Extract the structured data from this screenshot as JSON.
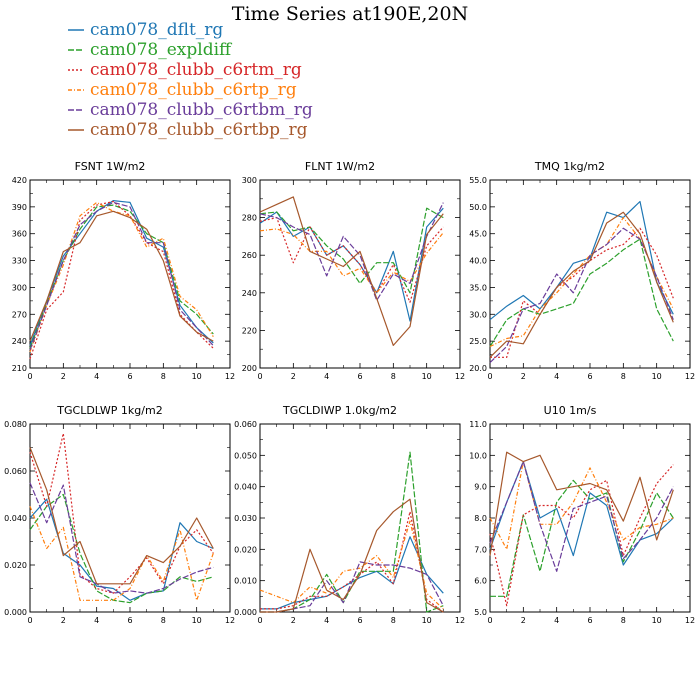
{
  "title": "Time Series at190E,20N",
  "colors": [
    "#1f77b4",
    "#2ca02c",
    "#d62728",
    "#ff7f0e",
    "#6a3d9a",
    "#a6582c"
  ],
  "dashes": [
    "none",
    "6,2",
    "2,2",
    "4,2,1,2",
    "6,2",
    "none"
  ],
  "legend": [
    "cam078_dflt_rg",
    "cam078_expldiff",
    "cam078_clubb_c6rtm_rg",
    "cam078_clubb_c6rtp_rg",
    "cam078_clubb_c6rtbm_rg",
    "cam078_clubb_c6rtbp_rg"
  ],
  "chart_data": [
    {
      "type": "line",
      "title": "FSNT   1W/m2",
      "xlim": [
        0,
        12
      ],
      "xticks": [
        "0",
        "2",
        "4",
        "6",
        "8",
        "10",
        "12"
      ],
      "ylim": [
        210,
        420
      ],
      "yticks": [
        "210",
        "240",
        "270",
        "300",
        "330",
        "360",
        "390",
        "420"
      ],
      "x": [
        0,
        1,
        2,
        3,
        4,
        5,
        6,
        7,
        8,
        9,
        10,
        11
      ],
      "series": [
        {
          "values": [
            235,
            285,
            335,
            360,
            385,
            397,
            395,
            355,
            345,
            280,
            255,
            238
          ]
        },
        {
          "values": [
            232,
            282,
            330,
            365,
            390,
            392,
            385,
            360,
            350,
            285,
            270,
            248
          ]
        },
        {
          "values": [
            220,
            275,
            295,
            375,
            392,
            396,
            380,
            350,
            340,
            270,
            250,
            232
          ]
        },
        {
          "values": [
            228,
            280,
            325,
            380,
            395,
            385,
            380,
            345,
            355,
            290,
            275,
            245
          ]
        },
        {
          "values": [
            230,
            280,
            330,
            370,
            385,
            395,
            390,
            350,
            350,
            275,
            255,
            235
          ]
        },
        {
          "values": [
            240,
            285,
            340,
            350,
            380,
            385,
            378,
            365,
            330,
            268,
            250,
            240
          ]
        }
      ]
    },
    {
      "type": "line",
      "title": "FLNT   1W/m2",
      "xlim": [
        0,
        12
      ],
      "xticks": [
        "0",
        "2",
        "4",
        "6",
        "8",
        "10",
        "12"
      ],
      "ylim": [
        200,
        300
      ],
      "yticks": [
        "200",
        "220",
        "240",
        "260",
        "280",
        "300"
      ],
      "x": [
        0,
        1,
        2,
        3,
        4,
        5,
        6,
        7,
        8,
        9,
        10,
        11
      ],
      "series": [
        {
          "values": [
            277,
            283,
            270,
            275,
            260,
            265,
            255,
            240,
            262,
            225,
            275,
            285
          ]
        },
        {
          "values": [
            282,
            283,
            273,
            275,
            265,
            258,
            245,
            256,
            256,
            240,
            285,
            280
          ]
        },
        {
          "values": [
            278,
            280,
            256,
            275,
            260,
            265,
            255,
            240,
            255,
            235,
            265,
            275
          ]
        },
        {
          "values": [
            273,
            274,
            271,
            262,
            262,
            249,
            253,
            240,
            251,
            246,
            261,
            272
          ]
        },
        {
          "values": [
            282,
            280,
            275,
            271,
            249,
            270,
            260,
            236,
            250,
            245,
            270,
            288
          ]
        },
        {
          "values": [
            283,
            287,
            291,
            262,
            258,
            254,
            262,
            237,
            212,
            222,
            271,
            282
          ]
        }
      ]
    },
    {
      "type": "line",
      "title": "TMQ   1kg/m2",
      "xlim": [
        0,
        12
      ],
      "xticks": [
        "0",
        "2",
        "4",
        "6",
        "8",
        "10",
        "12"
      ],
      "ylim": [
        20,
        55
      ],
      "yticks": [
        "20.0",
        "25.0",
        "30.0",
        "35.0",
        "40.0",
        "45.0",
        "50.0",
        "55.0"
      ],
      "x": [
        0,
        1,
        2,
        3,
        4,
        5,
        6,
        7,
        8,
        9,
        10,
        11
      ],
      "series": [
        {
          "values": [
            29,
            31.5,
            33.5,
            31,
            35,
            39.5,
            40.5,
            49,
            48,
            51,
            36,
            30
          ]
        },
        {
          "values": [
            24,
            29,
            31,
            30,
            31,
            32,
            37.5,
            39.5,
            42,
            44,
            31,
            25
          ]
        },
        {
          "values": [
            22,
            22,
            32.5,
            30,
            35,
            37,
            40,
            42,
            43,
            46,
            41,
            33
          ]
        },
        {
          "values": [
            24,
            25.5,
            26,
            31,
            34,
            37.5,
            41,
            43,
            48,
            44,
            37,
            31
          ]
        },
        {
          "values": [
            21,
            24,
            31,
            32,
            37.5,
            34,
            41,
            43,
            46,
            44,
            37,
            29
          ]
        },
        {
          "values": [
            22,
            25,
            24.5,
            30,
            35,
            38,
            40,
            47,
            49,
            45,
            36,
            28.5
          ]
        }
      ]
    },
    {
      "type": "line",
      "title": "TGCLDLWP   1kg/m2",
      "xlim": [
        0,
        12
      ],
      "xticks": [
        "0",
        "2",
        "4",
        "6",
        "8",
        "10",
        "12"
      ],
      "ylim": [
        0,
        0.08
      ],
      "yticks": [
        "0.000",
        "0.020",
        "0.040",
        "0.060",
        "0.080"
      ],
      "x": [
        0,
        1,
        2,
        3,
        4,
        5,
        6,
        7,
        8,
        9,
        10,
        11
      ],
      "series": [
        {
          "values": [
            0.04,
            0.048,
            0.025,
            0.02,
            0.011,
            0.01,
            0.005,
            0.008,
            0.009,
            0.038,
            0.03,
            0.027
          ]
        },
        {
          "values": [
            0.035,
            0.045,
            0.05,
            0.025,
            0.009,
            0.005,
            0.004,
            0.008,
            0.009,
            0.015,
            0.013,
            0.015
          ]
        },
        {
          "values": [
            0.068,
            0.045,
            0.076,
            0.016,
            0.01,
            0.008,
            0.015,
            0.023,
            0.012,
            0.028,
            0.035,
            0.025
          ]
        },
        {
          "values": [
            0.045,
            0.027,
            0.036,
            0.005,
            0.005,
            0.005,
            0.01,
            0.024,
            0.013,
            0.035,
            0.005,
            0.025
          ]
        },
        {
          "values": [
            0.055,
            0.038,
            0.054,
            0.015,
            0.012,
            0.008,
            0.009,
            0.008,
            0.01,
            0.014,
            0.017,
            0.019
          ]
        },
        {
          "values": [
            0.07,
            0.052,
            0.024,
            0.03,
            0.012,
            0.012,
            0.012,
            0.024,
            0.021,
            0.028,
            0.04,
            0.027
          ]
        }
      ]
    },
    {
      "type": "line",
      "title": "TGCLDIWP   1.0kg/m2",
      "xlim": [
        0,
        12
      ],
      "xticks": [
        "0",
        "2",
        "4",
        "6",
        "8",
        "10",
        "12"
      ],
      "ylim": [
        0,
        0.06
      ],
      "yticks": [
        "0.000",
        "0.010",
        "0.020",
        "0.030",
        "0.040",
        "0.050",
        "0.060"
      ],
      "x": [
        0,
        1,
        2,
        3,
        4,
        5,
        6,
        7,
        8,
        9,
        10,
        11
      ],
      "series": [
        {
          "values": [
            0.001,
            0.001,
            0.003,
            0.004,
            0.005,
            0.008,
            0.011,
            0.013,
            0.009,
            0.024,
            0.012,
            0.006
          ]
        },
        {
          "values": [
            0.0,
            0.0,
            0.001,
            0.004,
            0.012,
            0.003,
            0.013,
            0.013,
            0.013,
            0.051,
            0.0,
            0.002
          ]
        },
        {
          "values": [
            0.001,
            0.001,
            0.002,
            0.005,
            0.005,
            0.008,
            0.012,
            0.016,
            0.009,
            0.032,
            0.004,
            0.0
          ]
        },
        {
          "values": [
            0.007,
            0.005,
            0.003,
            0.008,
            0.006,
            0.013,
            0.014,
            0.018,
            0.011,
            0.029,
            0.006,
            0.001
          ]
        },
        {
          "values": [
            0.0,
            0.0,
            0.001,
            0.002,
            0.01,
            0.003,
            0.016,
            0.015,
            0.015,
            0.014,
            0.012,
            0.002
          ]
        },
        {
          "values": [
            0.0,
            0.0,
            0.001,
            0.02,
            0.007,
            0.004,
            0.012,
            0.026,
            0.032,
            0.036,
            0.003,
            0.0
          ]
        }
      ]
    },
    {
      "type": "line",
      "title": "U10   1m/s",
      "xlim": [
        0,
        12
      ],
      "xticks": [
        "0",
        "2",
        "4",
        "6",
        "8",
        "10",
        "12"
      ],
      "ylim": [
        5,
        11
      ],
      "yticks": [
        "5.0",
        "6.0",
        "7.0",
        "8.0",
        "9.0",
        "10.0",
        "11.0"
      ],
      "x": [
        0,
        1,
        2,
        3,
        4,
        5,
        6,
        7,
        8,
        9,
        10,
        11
      ],
      "series": [
        {
          "values": [
            7.0,
            8.5,
            9.8,
            8.0,
            8.3,
            6.8,
            8.8,
            8.4,
            6.5,
            7.3,
            7.5,
            8.0
          ]
        },
        {
          "values": [
            5.5,
            5.5,
            8.1,
            6.3,
            8.5,
            9.2,
            8.6,
            8.8,
            6.6,
            7.6,
            8.8,
            8.0
          ]
        },
        {
          "values": [
            7.5,
            5.2,
            8.1,
            8.4,
            8.4,
            8.0,
            8.9,
            9.2,
            6.8,
            8.0,
            9.1,
            9.7
          ]
        },
        {
          "values": [
            8.0,
            7.0,
            9.8,
            7.8,
            7.8,
            8.5,
            9.6,
            8.5,
            7.3,
            7.7,
            7.8,
            8.0
          ]
        },
        {
          "values": [
            7.2,
            8.5,
            9.8,
            7.8,
            6.3,
            8.3,
            8.5,
            8.7,
            6.7,
            7.3,
            8.0,
            9.0
          ]
        },
        {
          "values": [
            6.8,
            10.1,
            9.8,
            10.0,
            8.9,
            9.0,
            9.1,
            8.9,
            7.9,
            9.3,
            7.3,
            8.9
          ]
        }
      ]
    }
  ]
}
